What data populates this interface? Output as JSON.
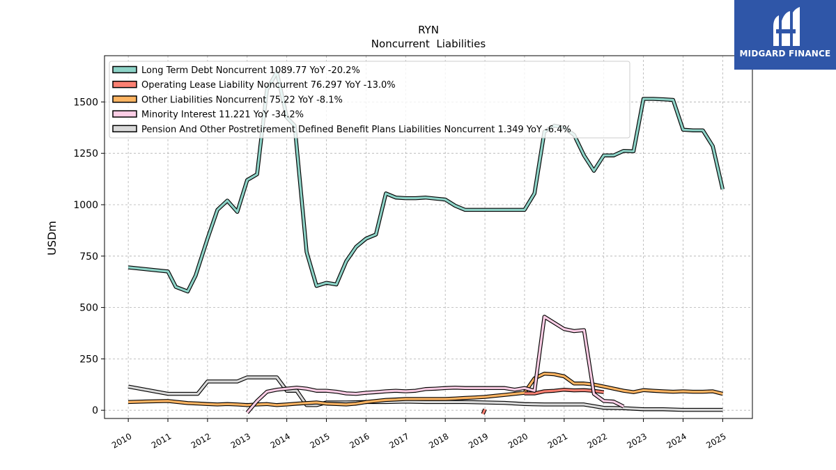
{
  "brand": {
    "name": "MIDGARD FINANCE",
    "bg": "#2f56a8"
  },
  "chart_data": {
    "type": "line",
    "title": "RYN",
    "subtitle": "Noncurrent  Liabilities",
    "ylabel": "USDm",
    "xlabel": "",
    "xlim": [
      2009.4,
      2025.75
    ],
    "ylim": [
      -40,
      1725
    ],
    "yticks": [
      0,
      250,
      500,
      750,
      1000,
      1250,
      1500
    ],
    "xticks": [
      2010,
      2011,
      2012,
      2013,
      2014,
      2015,
      2016,
      2017,
      2018,
      2019,
      2020,
      2021,
      2022,
      2023,
      2024,
      2025
    ],
    "grid": true,
    "legend_position": "top-left",
    "series": [
      {
        "name": "Long Term Debt Noncurrent",
        "legend": "Long Term Debt Noncurrent  1089.77 YoY -20.2%",
        "color": "#8dd3c7",
        "points": [
          [
            2010.0,
            695
          ],
          [
            2011.0,
            675
          ],
          [
            2011.2,
            600
          ],
          [
            2011.5,
            578
          ],
          [
            2011.7,
            655
          ],
          [
            2012.0,
            835
          ],
          [
            2012.25,
            975
          ],
          [
            2012.5,
            1020
          ],
          [
            2012.75,
            965
          ],
          [
            2013.0,
            1120
          ],
          [
            2013.25,
            1148
          ],
          [
            2013.5,
            1560
          ],
          [
            2013.75,
            1645
          ],
          [
            2014.0,
            1425
          ],
          [
            2014.2,
            1385
          ],
          [
            2014.5,
            770
          ],
          [
            2014.75,
            605
          ],
          [
            2015.0,
            620
          ],
          [
            2015.25,
            612
          ],
          [
            2015.5,
            725
          ],
          [
            2015.75,
            795
          ],
          [
            2016.0,
            835
          ],
          [
            2016.25,
            855
          ],
          [
            2016.5,
            1055
          ],
          [
            2016.75,
            1035
          ],
          [
            2017.0,
            1032
          ],
          [
            2017.25,
            1032
          ],
          [
            2017.5,
            1035
          ],
          [
            2017.75,
            1030
          ],
          [
            2018.0,
            1025
          ],
          [
            2018.25,
            995
          ],
          [
            2018.5,
            975
          ],
          [
            2018.75,
            975
          ],
          [
            2019.0,
            975
          ],
          [
            2019.25,
            975
          ],
          [
            2019.5,
            975
          ],
          [
            2019.75,
            975
          ],
          [
            2020.0,
            975
          ],
          [
            2020.25,
            1055
          ],
          [
            2020.5,
            1355
          ],
          [
            2020.75,
            1385
          ],
          [
            2021.0,
            1375
          ],
          [
            2021.25,
            1340
          ],
          [
            2021.5,
            1240
          ],
          [
            2021.75,
            1165
          ],
          [
            2022.0,
            1240
          ],
          [
            2022.25,
            1240
          ],
          [
            2022.5,
            1262
          ],
          [
            2022.75,
            1260
          ],
          [
            2023.0,
            1515
          ],
          [
            2023.25,
            1515
          ],
          [
            2023.5,
            1513
          ],
          [
            2023.75,
            1510
          ],
          [
            2024.0,
            1365
          ],
          [
            2024.25,
            1362
          ],
          [
            2024.5,
            1362
          ],
          [
            2024.75,
            1285
          ],
          [
            2025.0,
            1075
          ]
        ]
      },
      {
        "name": "Operating Lease Liability Noncurrent",
        "legend": "Operating Lease Liability Noncurrent  76.297 YoY -13.0%",
        "color": "#fb8072",
        "points": [
          [
            2018.95,
            -18
          ],
          [
            2019.0,
            5
          ]
        ],
        "points2": [
          [
            2020.0,
            82
          ],
          [
            2020.25,
            82
          ],
          [
            2020.5,
            92
          ],
          [
            2020.75,
            95
          ],
          [
            2021.0,
            100
          ],
          [
            2021.25,
            97
          ],
          [
            2021.5,
            98
          ],
          [
            2021.75,
            94
          ],
          [
            2022.0,
            88
          ]
        ]
      },
      {
        "name": "Other Liabilities Noncurrent",
        "legend": "Other Liabilities Noncurrent  75.22 YoY -8.1%",
        "color": "#fdb462",
        "points": [
          [
            2010.0,
            40
          ],
          [
            2010.5,
            43
          ],
          [
            2011.0,
            45
          ],
          [
            2011.25,
            40
          ],
          [
            2011.5,
            35
          ],
          [
            2011.75,
            33
          ],
          [
            2012.0,
            30
          ],
          [
            2012.25,
            28
          ],
          [
            2012.5,
            30
          ],
          [
            2012.75,
            28
          ],
          [
            2013.0,
            25
          ],
          [
            2013.25,
            28
          ],
          [
            2013.5,
            30
          ],
          [
            2013.75,
            25
          ],
          [
            2014.0,
            28
          ],
          [
            2014.25,
            32
          ],
          [
            2014.5,
            35
          ],
          [
            2014.75,
            38
          ],
          [
            2015.0,
            32
          ],
          [
            2015.25,
            30
          ],
          [
            2015.5,
            28
          ],
          [
            2015.75,
            32
          ],
          [
            2016.0,
            40
          ],
          [
            2016.25,
            45
          ],
          [
            2016.5,
            50
          ],
          [
            2016.75,
            52
          ],
          [
            2017.0,
            55
          ],
          [
            2017.25,
            55
          ],
          [
            2017.5,
            55
          ],
          [
            2017.75,
            55
          ],
          [
            2018.0,
            55
          ],
          [
            2018.25,
            57
          ],
          [
            2018.5,
            60
          ],
          [
            2018.75,
            62
          ],
          [
            2019.0,
            65
          ],
          [
            2019.25,
            70
          ],
          [
            2019.5,
            75
          ],
          [
            2019.75,
            80
          ],
          [
            2020.0,
            85
          ],
          [
            2020.25,
            155
          ],
          [
            2020.5,
            178
          ],
          [
            2020.75,
            175
          ],
          [
            2021.0,
            165
          ],
          [
            2021.25,
            130
          ],
          [
            2021.5,
            130
          ],
          [
            2021.75,
            125
          ],
          [
            2022.0,
            115
          ],
          [
            2022.25,
            105
          ],
          [
            2022.5,
            95
          ],
          [
            2022.75,
            88
          ],
          [
            2023.0,
            98
          ],
          [
            2023.25,
            95
          ],
          [
            2023.5,
            92
          ],
          [
            2023.75,
            90
          ],
          [
            2024.0,
            92
          ],
          [
            2024.25,
            90
          ],
          [
            2024.5,
            90
          ],
          [
            2024.75,
            92
          ],
          [
            2025.0,
            80
          ]
        ]
      },
      {
        "name": "Minority Interest",
        "legend": "Minority Interest  11.221 YoY -34.2%",
        "color": "#fccde5",
        "points": [
          [
            2013.0,
            -12
          ],
          [
            2013.25,
            45
          ],
          [
            2013.5,
            90
          ],
          [
            2013.75,
            100
          ],
          [
            2014.0,
            105
          ],
          [
            2014.25,
            110
          ],
          [
            2014.5,
            105
          ],
          [
            2014.75,
            95
          ],
          [
            2015.0,
            95
          ],
          [
            2015.25,
            90
          ],
          [
            2015.5,
            82
          ],
          [
            2015.75,
            80
          ],
          [
            2016.0,
            85
          ],
          [
            2016.25,
            88
          ],
          [
            2016.5,
            92
          ],
          [
            2016.75,
            95
          ],
          [
            2017.0,
            92
          ],
          [
            2017.25,
            95
          ],
          [
            2017.5,
            103
          ],
          [
            2017.75,
            105
          ],
          [
            2018.0,
            108
          ],
          [
            2018.25,
            110
          ],
          [
            2018.5,
            108
          ],
          [
            2018.75,
            108
          ],
          [
            2019.0,
            108
          ],
          [
            2019.25,
            108
          ],
          [
            2019.5,
            108
          ],
          [
            2019.75,
            100
          ],
          [
            2020.0,
            108
          ],
          [
            2020.25,
            95
          ],
          [
            2020.5,
            455
          ],
          [
            2020.75,
            425
          ],
          [
            2021.0,
            395
          ],
          [
            2021.25,
            385
          ],
          [
            2021.5,
            390
          ],
          [
            2021.75,
            80
          ],
          [
            2022.0,
            45
          ],
          [
            2022.25,
            42
          ],
          [
            2022.5,
            18
          ]
        ]
      },
      {
        "name": "Pension And Other Postretirement Defined Benefit Plans Liabilities Noncurrent",
        "legend": "Pension And Other Postretirement Defined Benefit Plans Liabilities Noncurrent  1.349 YoY -6.4%",
        "color": "#d9d9d9",
        "points": [
          [
            2010.0,
            115
          ],
          [
            2011.0,
            80
          ],
          [
            2011.75,
            80
          ],
          [
            2012.0,
            140
          ],
          [
            2012.75,
            140
          ],
          [
            2013.0,
            160
          ],
          [
            2013.75,
            160
          ],
          [
            2014.0,
            95
          ],
          [
            2014.25,
            95
          ],
          [
            2014.5,
            25
          ],
          [
            2014.75,
            25
          ],
          [
            2015.0,
            38
          ],
          [
            2015.5,
            38
          ],
          [
            2016.0,
            40
          ],
          [
            2016.5,
            40
          ],
          [
            2017.0,
            42
          ],
          [
            2017.5,
            40
          ],
          [
            2018.0,
            40
          ],
          [
            2018.5,
            40
          ],
          [
            2019.0,
            38
          ],
          [
            2019.5,
            36
          ],
          [
            2020.0,
            30
          ],
          [
            2020.5,
            28
          ],
          [
            2021.0,
            28
          ],
          [
            2021.5,
            28
          ],
          [
            2022.0,
            12
          ],
          [
            2022.5,
            10
          ],
          [
            2023.0,
            5
          ],
          [
            2023.5,
            5
          ],
          [
            2024.0,
            2
          ],
          [
            2024.5,
            2
          ],
          [
            2025.0,
            2
          ]
        ]
      }
    ]
  }
}
